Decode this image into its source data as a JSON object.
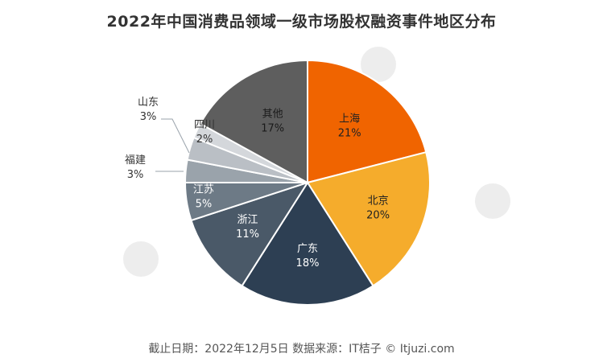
{
  "chart_data": {
    "type": "pie",
    "title": "2022年中国消费品领域一级市场股权融资事件地区分布",
    "slices": [
      {
        "label": "上海",
        "value": 21,
        "display": "21%",
        "color": "#F06400"
      },
      {
        "label": "北京",
        "value": 20,
        "display": "20%",
        "color": "#F5AC2C"
      },
      {
        "label": "广东",
        "value": 18,
        "display": "18%",
        "color": "#2D3F53"
      },
      {
        "label": "浙江",
        "value": 11,
        "display": "11%",
        "color": "#4A5968"
      },
      {
        "label": "江苏",
        "value": 5,
        "display": "5%",
        "color": "#6D7A86"
      },
      {
        "label": "福建",
        "value": 3,
        "display": "3%",
        "color": "#9AA3AB"
      },
      {
        "label": "山东",
        "value": 3,
        "display": "3%",
        "color": "#BABFC5"
      },
      {
        "label": "四川",
        "value": 2,
        "display": "2%",
        "color": "#D4D7DB"
      },
      {
        "label": "其他",
        "value": 17,
        "display": "17%",
        "color": "#5E5E5E"
      }
    ],
    "legend": "none"
  },
  "footer": {
    "note": "截止日期：2022年12月5日    数据来源：IT桔子 © Itjuzi.com"
  }
}
